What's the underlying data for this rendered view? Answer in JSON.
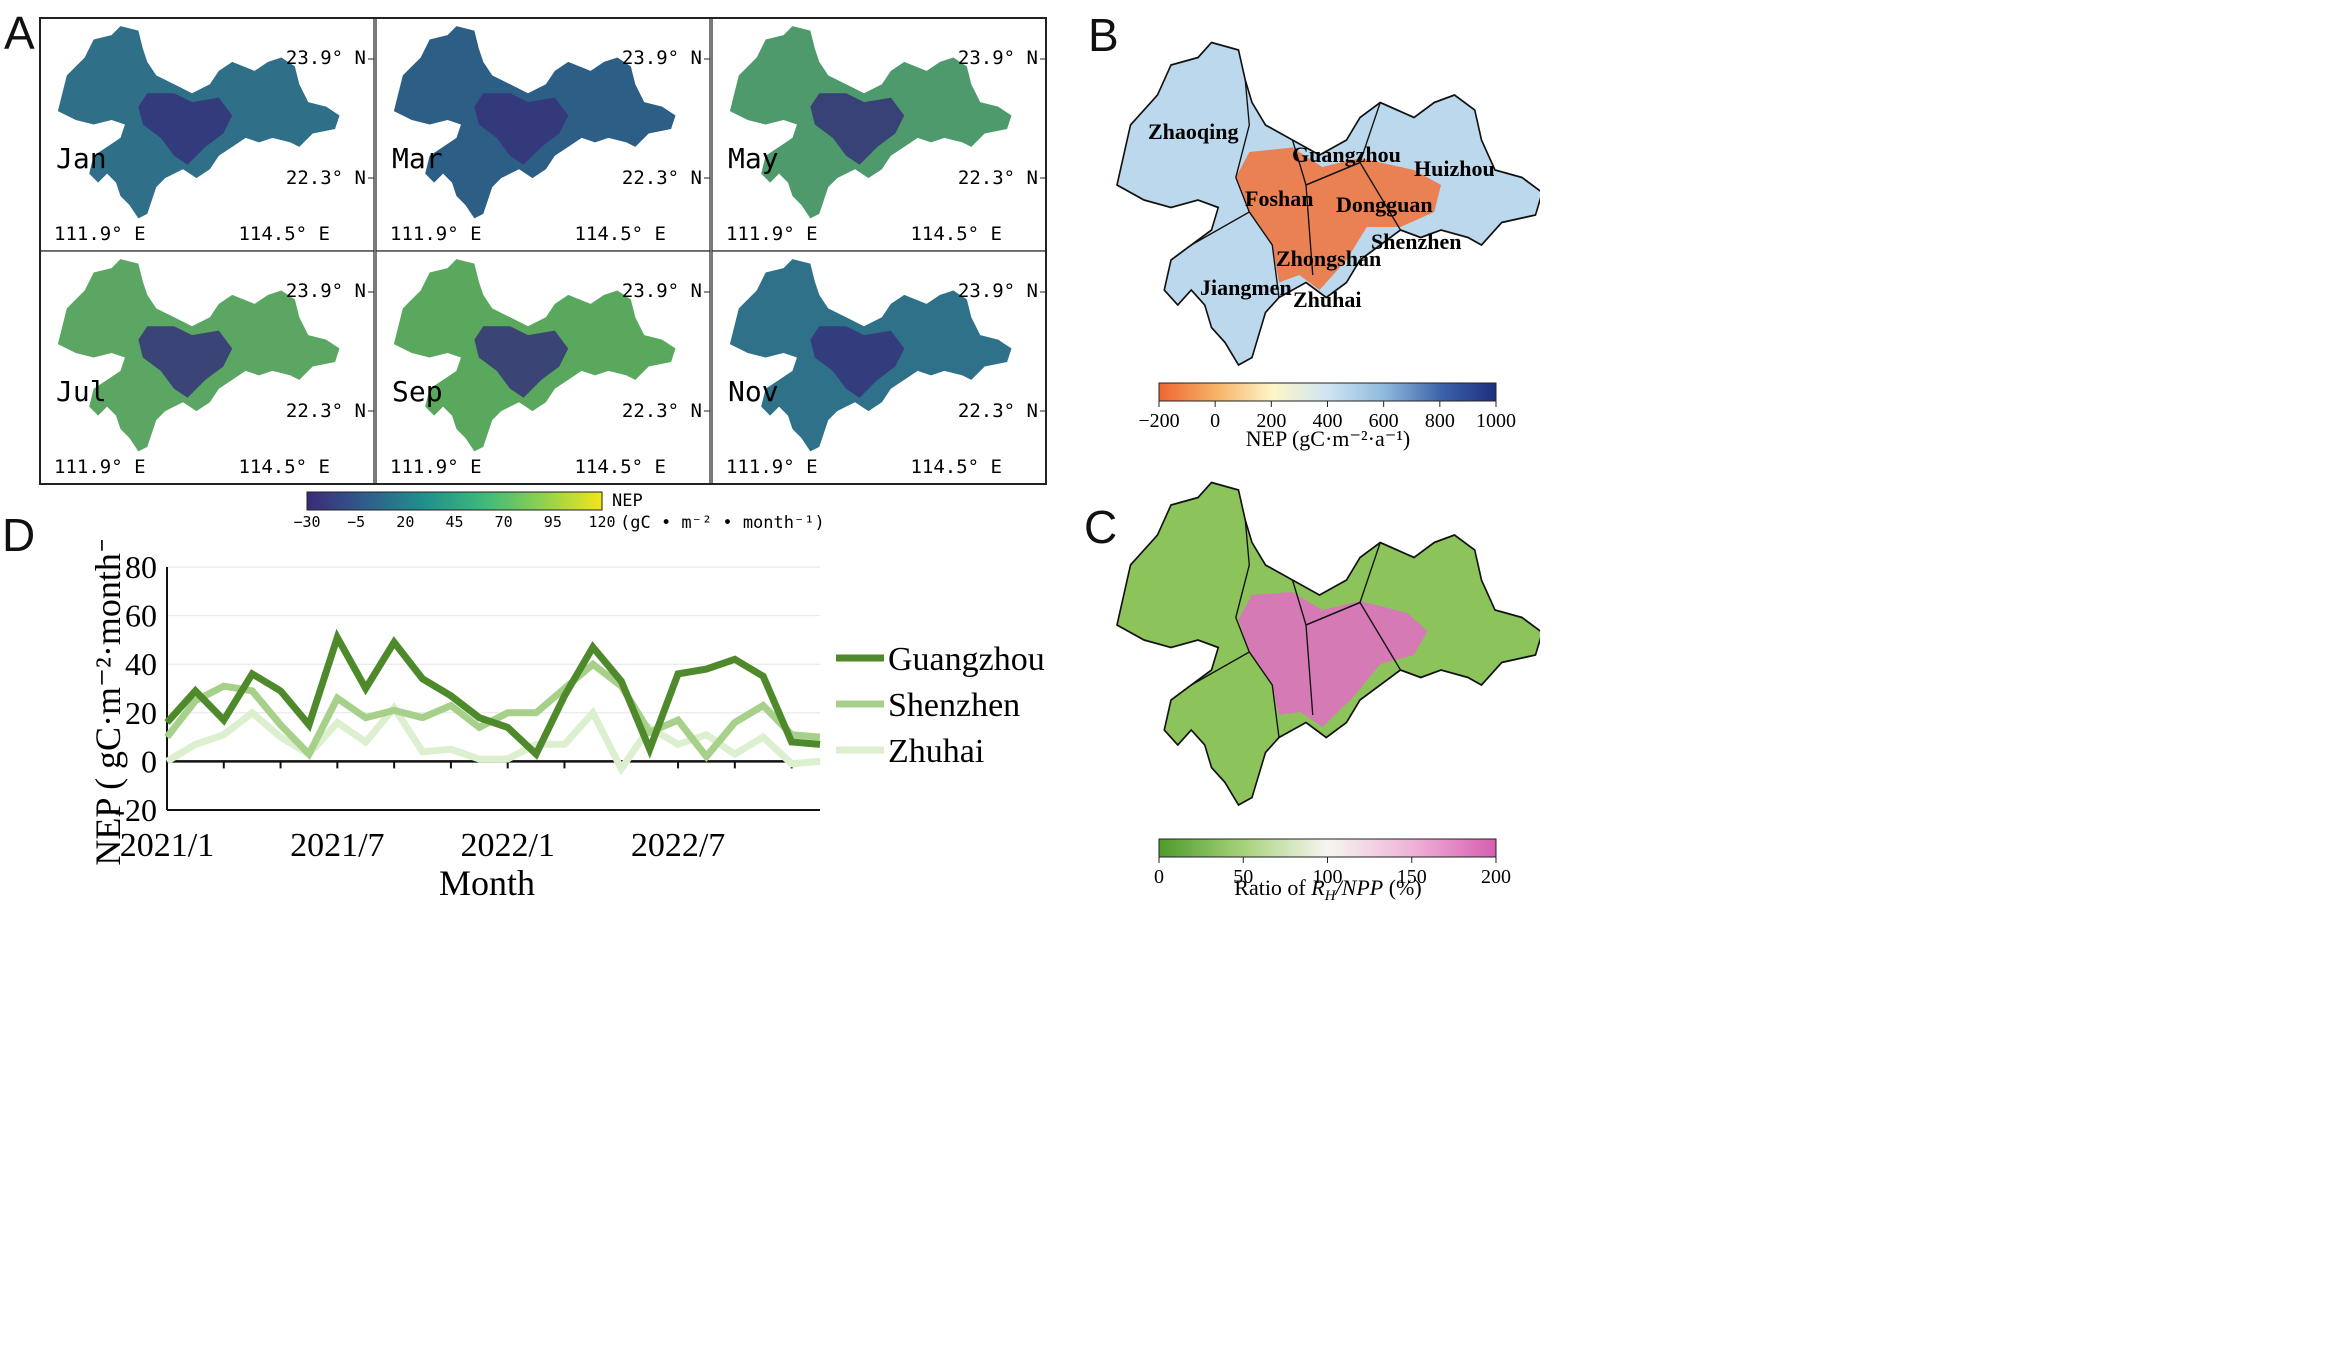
{
  "panels": {
    "a": "A",
    "b": "B",
    "c": "C",
    "d": "D"
  },
  "panel_a": {
    "months": [
      "Jan",
      "Mar",
      "May",
      "Jul",
      "Sep",
      "Nov"
    ],
    "lat_top": "23.9° N",
    "lat_bottom": "22.3° N",
    "lon_left": "111.9° E",
    "lon_right": "114.5° E",
    "colorbar": {
      "ticks": [
        "−30",
        "−5",
        "20",
        "45",
        "70",
        "95",
        "120"
      ],
      "label_top": "NEP",
      "label_unit": "(gC • m⁻² • month⁻¹)",
      "colors": [
        "#3b2a7a",
        "#2f5e8c",
        "#21908c",
        "#3db97a",
        "#8fd14f",
        "#f3e619"
      ]
    },
    "map_colors": {
      "Jan": "#2f6f88",
      "Mar": "#2d5e86",
      "May": "#4e9a6c",
      "Jul": "#5aa662",
      "Sep": "#5aa85e",
      "Nov": "#2e7188",
      "core": "#35337a"
    }
  },
  "panel_b": {
    "cities": [
      "Zhaoqing",
      "Guangzhou",
      "Huizhou",
      "Foshan",
      "Dongguan",
      "Shenzhen",
      "Zhongshan",
      "Jiangmen",
      "Zhuhai"
    ],
    "colorbar": {
      "ticks": [
        "−200",
        "0",
        "200",
        "400",
        "600",
        "800",
        "1000"
      ],
      "label": "NEP (gC·m⁻²·a⁻¹)",
      "colors": [
        "#ee6633",
        "#f7b267",
        "#fdf6c8",
        "#cfe5f2",
        "#8fb9dc",
        "#3c62a8",
        "#1d2f80"
      ]
    },
    "fill": {
      "base": "#bcd8ec",
      "urban": "#ee7a45"
    }
  },
  "panel_c": {
    "colorbar": {
      "ticks": [
        "0",
        "50",
        "100",
        "150",
        "200"
      ],
      "label": "Ratio of R_H/NPP (%)",
      "colors": [
        "#4d9b2a",
        "#a6d27b",
        "#f6f6f0",
        "#f0b3d8",
        "#d65fb0"
      ]
    },
    "fill": {
      "base": "#8cc35a",
      "urban": "#dd72bf"
    }
  },
  "chart_data": {
    "type": "line",
    "title": "",
    "xlabel": "Month",
    "ylabel": "NEP ( gC·m⁻²·month⁻¹ )",
    "ylim": [
      -20,
      80
    ],
    "yticks": [
      "80",
      "60",
      "40",
      "20",
      "0",
      "-20"
    ],
    "xticks": [
      "2021/1",
      "2021/7",
      "2022/1",
      "2022/7"
    ],
    "x_tick_index": [
      0,
      6,
      12,
      18
    ],
    "x": [
      "2021/1",
      "2021/2",
      "2021/3",
      "2021/4",
      "2021/5",
      "2021/6",
      "2021/7",
      "2021/8",
      "2021/9",
      "2021/10",
      "2021/11",
      "2021/12",
      "2022/1",
      "2022/2",
      "2022/3",
      "2022/4",
      "2022/5",
      "2022/6",
      "2022/7",
      "2022/8",
      "2022/9",
      "2022/10",
      "2022/11",
      "2022/12"
    ],
    "series": [
      {
        "name": "Guangzhou",
        "color": "#4e8a2b",
        "values": [
          16,
          29,
          17,
          36,
          29,
          15,
          51,
          30,
          49,
          34,
          27,
          18,
          14,
          3,
          27,
          47,
          33,
          5,
          36,
          38,
          42,
          35,
          8,
          7
        ]
      },
      {
        "name": "Shenzhen",
        "color": "#a7d08a",
        "values": [
          10,
          25,
          31,
          29,
          15,
          3,
          26,
          18,
          21,
          18,
          23,
          14,
          20,
          20,
          30,
          40,
          31,
          12,
          17,
          2,
          16,
          23,
          11,
          10
        ]
      },
      {
        "name": "Zhuhai",
        "color": "#dcefcf",
        "values": [
          0,
          7,
          11,
          20,
          10,
          3,
          16,
          8,
          22,
          4,
          5,
          1,
          1,
          7,
          7,
          20,
          -3,
          14,
          7,
          11,
          3,
          10,
          -1,
          0
        ]
      }
    ]
  }
}
